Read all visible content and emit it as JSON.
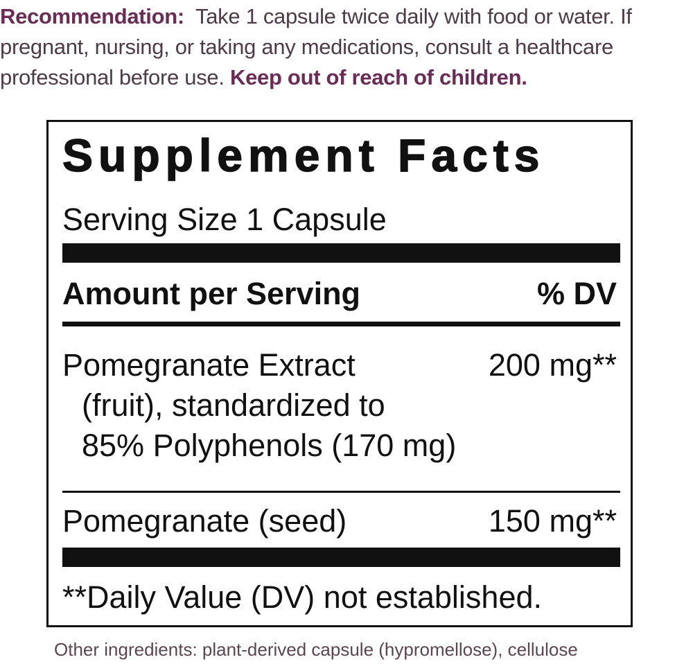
{
  "recommendation": {
    "label": "Recommendation:",
    "text": "Take 1 capsule twice daily with food or water. If pregnant, nursing, or taking any medications, consult a healthcare professional before use.",
    "warning": "Keep out of reach of children."
  },
  "facts": {
    "title": "Supplement Facts",
    "serving_size": "Serving Size 1 Capsule",
    "amount_header": "Amount per Serving",
    "dv_header": "% DV",
    "rows": [
      {
        "name_lines": [
          "Pomegranate Extract",
          "(fruit), standardized to",
          "85% Polyphenols (170 mg)"
        ],
        "amount": "200 mg**"
      },
      {
        "name_lines": [
          "Pomegranate (seed)"
        ],
        "amount": "150 mg**"
      }
    ],
    "footnote": "**Daily Value (DV) not established."
  },
  "other_ingredients": "Other ingredients: plant-derived capsule (hypromellose), cellulose",
  "colors": {
    "accent": "#6a2c55",
    "text": "#4d3b47"
  }
}
